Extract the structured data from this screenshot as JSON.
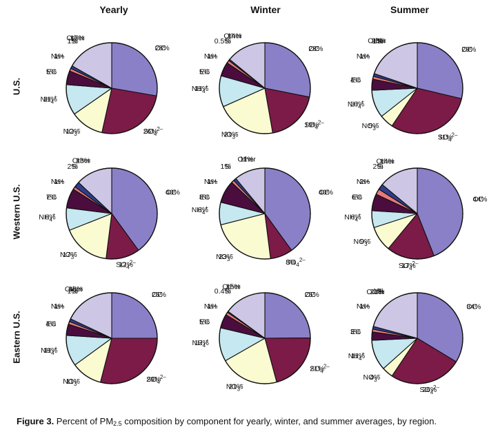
{
  "figure": {
    "columns": [
      "Yearly",
      "Winter",
      "Summer"
    ],
    "rows": [
      "U.S.",
      "Western U.S.",
      "Eastern U.S."
    ],
    "caption_label": "Figure 3.",
    "caption_text_before": " Percent of PM",
    "caption_subscript": "2.5",
    "caption_text_after": " composition by component for yearly, winter, and summer averages, by region."
  },
  "colors": {
    "OC": "#8a80c8",
    "SO4": "#7c1b48",
    "NO3": "#fbfbd2",
    "NH4": "#c6e8f0",
    "EC": "#4a0d3e",
    "Na": "#e87a78",
    "Si": "#2e3d8c",
    "Other": "#cdc6e4"
  },
  "chart_data": [
    {
      "type": "pie",
      "region": "U.S.",
      "season": "Yearly",
      "slices": [
        {
          "key": "OC",
          "name": "OC",
          "value": 28,
          "label": "28%"
        },
        {
          "key": "SO4",
          "name": "SO4 2–",
          "value": 26,
          "label": "26%"
        },
        {
          "key": "NO3",
          "name": "NO3 –",
          "value": 12,
          "label": "12%"
        },
        {
          "key": "NH4",
          "name": "NH4 +",
          "value": 11,
          "label": "11%"
        },
        {
          "key": "EC",
          "name": "EC",
          "value": 5,
          "label": "5%"
        },
        {
          "key": "Na",
          "name": "Na+",
          "value": 1,
          "label": "1%"
        },
        {
          "key": "Si",
          "name": "Si",
          "value": 1,
          "label": "1%"
        },
        {
          "key": "Other",
          "name": "Other",
          "value": 17,
          "label": "17%"
        }
      ]
    },
    {
      "type": "pie",
      "region": "U.S.",
      "season": "Winter",
      "slices": [
        {
          "key": "OC",
          "name": "OC",
          "value": 28,
          "label": "28%"
        },
        {
          "key": "SO4",
          "name": "SO4 2–",
          "value": 19,
          "label": "19%"
        },
        {
          "key": "NO3",
          "name": "NO3 –",
          "value": 21,
          "label": "21%"
        },
        {
          "key": "NH4",
          "name": "NH4 +",
          "value": 11,
          "label": "11%"
        },
        {
          "key": "EC",
          "name": "EC",
          "value": 5,
          "label": "5%"
        },
        {
          "key": "Na",
          "name": "Na+",
          "value": 1,
          "label": "1%"
        },
        {
          "key": "Si",
          "name": "Si",
          "value": 0.5,
          "label": "0.5%"
        },
        {
          "key": "Other",
          "name": "Other",
          "value": 14,
          "label": "14%"
        }
      ]
    },
    {
      "type": "pie",
      "region": "U.S.",
      "season": "Summer",
      "slices": [
        {
          "key": "OC",
          "name": "OC",
          "value": 29,
          "label": "29%"
        },
        {
          "key": "SO4",
          "name": "SO4 2–",
          "value": 31,
          "label": "31%"
        },
        {
          "key": "NO3",
          "name": "NO3 –",
          "value": 5,
          "label": "5%"
        },
        {
          "key": "NH4",
          "name": "NH4 +",
          "value": 10,
          "label": "10%"
        },
        {
          "key": "EC",
          "name": "EC",
          "value": 4,
          "label": "4%"
        },
        {
          "key": "Na",
          "name": "Na+",
          "value": 1,
          "label": "1%"
        },
        {
          "key": "Si",
          "name": "Si",
          "value": 1,
          "label": "1%"
        },
        {
          "key": "Other",
          "name": "Other",
          "value": 20,
          "label": "20%"
        }
      ]
    },
    {
      "type": "pie",
      "region": "Western U.S.",
      "season": "Yearly",
      "slices": [
        {
          "key": "OC",
          "name": "OC",
          "value": 40,
          "label": "40%"
        },
        {
          "key": "SO4",
          "name": "SO4 2–",
          "value": 12,
          "label": "12%"
        },
        {
          "key": "NO3",
          "name": "NO3 –",
          "value": 17,
          "label": "17%"
        },
        {
          "key": "NH4",
          "name": "NH4 +",
          "value": 8,
          "label": "8%"
        },
        {
          "key": "EC",
          "name": "EC",
          "value": 7,
          "label": "7%"
        },
        {
          "key": "Na",
          "name": "Na+",
          "value": 1,
          "label": "1%"
        },
        {
          "key": "Si",
          "name": "Si",
          "value": 2,
          "label": "2%"
        },
        {
          "key": "Other",
          "name": "Other",
          "value": 13,
          "label": "13%"
        }
      ]
    },
    {
      "type": "pie",
      "region": "Western U.S.",
      "season": "Winter",
      "slices": [
        {
          "key": "OC",
          "name": "OC",
          "value": 40,
          "label": "40%"
        },
        {
          "key": "SO4",
          "name": "SO4 2–",
          "value": 8,
          "label": "8%"
        },
        {
          "key": "NO3",
          "name": "NO3 –",
          "value": 23,
          "label": "23%"
        },
        {
          "key": "NH4",
          "name": "NH4 +",
          "value": 8,
          "label": "8%"
        },
        {
          "key": "EC",
          "name": "EC",
          "value": 8,
          "label": "8%"
        },
        {
          "key": "Na",
          "name": "Na+",
          "value": 1,
          "label": "1%"
        },
        {
          "key": "Si",
          "name": "Si",
          "value": 1,
          "label": "1%"
        },
        {
          "key": "Other",
          "name": "Other",
          "value": 11,
          "label": "11%"
        }
      ]
    },
    {
      "type": "pie",
      "region": "Western U.S.",
      "season": "Summer",
      "slices": [
        {
          "key": "OC",
          "name": "OC",
          "value": 44,
          "label": "44%"
        },
        {
          "key": "SO4",
          "name": "SO4 2–",
          "value": 17,
          "label": "17%"
        },
        {
          "key": "NO3",
          "name": "NO3 –",
          "value": 9,
          "label": "9%"
        },
        {
          "key": "NH4",
          "name": "NH4 +",
          "value": 6,
          "label": "6%"
        },
        {
          "key": "EC",
          "name": "EC",
          "value": 6,
          "label": "6%"
        },
        {
          "key": "Na",
          "name": "Na+",
          "value": 2,
          "label": "2%"
        },
        {
          "key": "Si",
          "name": "Si",
          "value": 2,
          "label": "2%"
        },
        {
          "key": "Other",
          "name": "Other",
          "value": 14,
          "label": "14%"
        }
      ]
    },
    {
      "type": "pie",
      "region": "Eastern U.S.",
      "season": "Yearly",
      "slices": [
        {
          "key": "OC",
          "name": "OC",
          "value": 25,
          "label": "25%"
        },
        {
          "key": "SO4",
          "name": "SO4 2–",
          "value": 29,
          "label": "29%"
        },
        {
          "key": "NO3",
          "name": "NO3 –",
          "value": 11,
          "label": "11%"
        },
        {
          "key": "NH4",
          "name": "NH4 +",
          "value": 11,
          "label": "11%"
        },
        {
          "key": "EC",
          "name": "EC",
          "value": 4,
          "label": "4%"
        },
        {
          "key": "Na",
          "name": "Na+",
          "value": 1,
          "label": "1%"
        },
        {
          "key": "Si",
          "name": "Si",
          "value": 1,
          "label": "1%"
        },
        {
          "key": "Other",
          "name": "Other",
          "value": 18,
          "label": "18%"
        }
      ]
    },
    {
      "type": "pie",
      "region": "Eastern U.S.",
      "season": "Winter",
      "slices": [
        {
          "key": "OC",
          "name": "OC",
          "value": 25,
          "label": "25%"
        },
        {
          "key": "SO4",
          "name": "SO4 2–",
          "value": 21,
          "label": "21%"
        },
        {
          "key": "NO3",
          "name": "NO3 –",
          "value": 21,
          "label": "21%"
        },
        {
          "key": "NH4",
          "name": "NH4 +",
          "value": 12,
          "label": "12%"
        },
        {
          "key": "EC",
          "name": "EC",
          "value": 5,
          "label": "5%"
        },
        {
          "key": "Na",
          "name": "Na+",
          "value": 1,
          "label": "1%"
        },
        {
          "key": "Si",
          "name": "Si",
          "value": 0.4,
          "label": "0.4%"
        },
        {
          "key": "Other",
          "name": "Other",
          "value": 15,
          "label": "15%"
        }
      ]
    },
    {
      "type": "pie",
      "region": "Eastern U.S.",
      "season": "Summer",
      "slices": [
        {
          "key": "OC",
          "name": "OC",
          "value": 34,
          "label": "34%"
        },
        {
          "key": "SO4",
          "name": "SO4 2–",
          "value": 26,
          "label": "26%"
        },
        {
          "key": "NO3",
          "name": "NO3 –",
          "value": 4,
          "label": "4%"
        },
        {
          "key": "NH4",
          "name": "NH4 +",
          "value": 11,
          "label": "11%"
        },
        {
          "key": "EC",
          "name": "EC",
          "value": 3,
          "label": "3%"
        },
        {
          "key": "Na",
          "name": "Na+",
          "value": 1,
          "label": "1%"
        },
        {
          "key": "Si",
          "name": "Si",
          "value": 1,
          "label": "1%"
        },
        {
          "key": "Other",
          "name": "Other",
          "value": 21,
          "label": "21%"
        }
      ]
    }
  ]
}
